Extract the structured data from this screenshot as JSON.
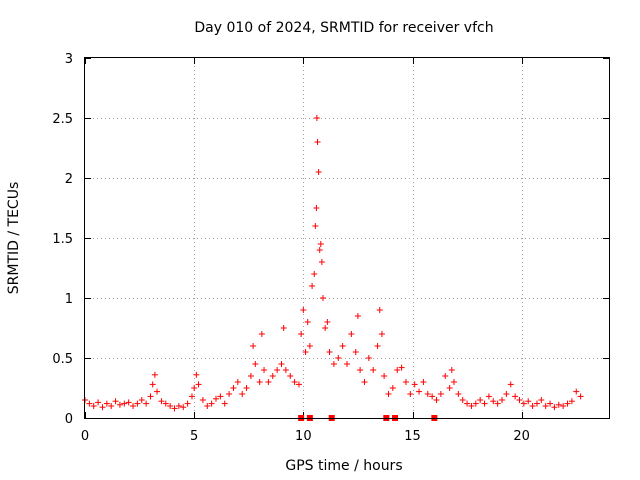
{
  "chart_data": {
    "type": "scatter",
    "title": "Day 010 of 2024, SRMTID for receiver vfch",
    "xlabel": "GPS time / hours",
    "ylabel": "SRMTID / TECUs",
    "xlim": [
      0,
      24
    ],
    "ylim": [
      0,
      3
    ],
    "x_ticks": [
      0,
      5,
      10,
      15,
      20
    ],
    "y_ticks": [
      0,
      0.5,
      1,
      1.5,
      2,
      2.5,
      3
    ],
    "x_tick_labels": [
      "0",
      "5",
      "10",
      "15",
      "20"
    ],
    "y_tick_labels": [
      "0",
      "0.5",
      "1",
      "1.5",
      "2",
      "2.5",
      "3"
    ],
    "grid": true,
    "marker": "plus",
    "marker_color": "#ff0000",
    "series": [
      {
        "name": "SRMTID",
        "points": [
          [
            0.0,
            0.15
          ],
          [
            0.2,
            0.12
          ],
          [
            0.4,
            0.1
          ],
          [
            0.6,
            0.13
          ],
          [
            0.8,
            0.09
          ],
          [
            1.0,
            0.12
          ],
          [
            1.2,
            0.1
          ],
          [
            1.4,
            0.14
          ],
          [
            1.6,
            0.11
          ],
          [
            1.8,
            0.12
          ],
          [
            2.0,
            0.13
          ],
          [
            2.2,
            0.1
          ],
          [
            2.4,
            0.12
          ],
          [
            2.6,
            0.15
          ],
          [
            2.8,
            0.12
          ],
          [
            3.0,
            0.18
          ],
          [
            3.1,
            0.28
          ],
          [
            3.2,
            0.36
          ],
          [
            3.3,
            0.22
          ],
          [
            3.5,
            0.14
          ],
          [
            3.7,
            0.12
          ],
          [
            3.9,
            0.1
          ],
          [
            4.1,
            0.08
          ],
          [
            4.3,
            0.1
          ],
          [
            4.5,
            0.09
          ],
          [
            4.7,
            0.12
          ],
          [
            4.9,
            0.18
          ],
          [
            5.0,
            0.25
          ],
          [
            5.1,
            0.36
          ],
          [
            5.2,
            0.28
          ],
          [
            5.4,
            0.15
          ],
          [
            5.6,
            0.1
          ],
          [
            5.8,
            0.12
          ],
          [
            6.0,
            0.16
          ],
          [
            6.2,
            0.18
          ],
          [
            6.4,
            0.12
          ],
          [
            6.6,
            0.2
          ],
          [
            6.8,
            0.25
          ],
          [
            7.0,
            0.3
          ],
          [
            7.2,
            0.2
          ],
          [
            7.4,
            0.25
          ],
          [
            7.6,
            0.35
          ],
          [
            7.7,
            0.6
          ],
          [
            7.8,
            0.45
          ],
          [
            8.0,
            0.3
          ],
          [
            8.1,
            0.7
          ],
          [
            8.2,
            0.4
          ],
          [
            8.4,
            0.3
          ],
          [
            8.6,
            0.35
          ],
          [
            8.8,
            0.4
          ],
          [
            9.0,
            0.45
          ],
          [
            9.1,
            0.75
          ],
          [
            9.2,
            0.4
          ],
          [
            9.4,
            0.35
          ],
          [
            9.6,
            0.3
          ],
          [
            9.8,
            0.28
          ],
          [
            9.9,
            0.7
          ],
          [
            10.0,
            0.9
          ],
          [
            10.1,
            0.55
          ],
          [
            10.2,
            0.8
          ],
          [
            10.3,
            0.6
          ],
          [
            10.4,
            1.1
          ],
          [
            10.5,
            1.2
          ],
          [
            10.55,
            1.6
          ],
          [
            10.6,
            1.75
          ],
          [
            10.62,
            2.5
          ],
          [
            10.65,
            2.3
          ],
          [
            10.7,
            2.05
          ],
          [
            10.75,
            1.4
          ],
          [
            10.8,
            1.45
          ],
          [
            10.85,
            1.3
          ],
          [
            10.9,
            1.0
          ],
          [
            11.0,
            0.75
          ],
          [
            11.1,
            0.8
          ],
          [
            11.2,
            0.55
          ],
          [
            11.4,
            0.45
          ],
          [
            11.6,
            0.5
          ],
          [
            11.8,
            0.6
          ],
          [
            12.0,
            0.45
          ],
          [
            12.2,
            0.7
          ],
          [
            12.4,
            0.55
          ],
          [
            12.5,
            0.85
          ],
          [
            12.6,
            0.4
          ],
          [
            12.8,
            0.3
          ],
          [
            13.0,
            0.5
          ],
          [
            13.2,
            0.4
          ],
          [
            13.4,
            0.6
          ],
          [
            13.5,
            0.9
          ],
          [
            13.6,
            0.7
          ],
          [
            13.7,
            0.35
          ],
          [
            13.9,
            0.2
          ],
          [
            14.1,
            0.25
          ],
          [
            14.3,
            0.4
          ],
          [
            14.5,
            0.42
          ],
          [
            14.7,
            0.3
          ],
          [
            14.9,
            0.2
          ],
          [
            15.1,
            0.28
          ],
          [
            15.3,
            0.22
          ],
          [
            15.5,
            0.3
          ],
          [
            15.7,
            0.2
          ],
          [
            15.9,
            0.18
          ],
          [
            16.1,
            0.15
          ],
          [
            16.3,
            0.2
          ],
          [
            16.5,
            0.35
          ],
          [
            16.7,
            0.25
          ],
          [
            16.8,
            0.4
          ],
          [
            16.9,
            0.3
          ],
          [
            17.1,
            0.2
          ],
          [
            17.3,
            0.15
          ],
          [
            17.5,
            0.12
          ],
          [
            17.7,
            0.1
          ],
          [
            17.9,
            0.12
          ],
          [
            18.1,
            0.15
          ],
          [
            18.3,
            0.12
          ],
          [
            18.5,
            0.18
          ],
          [
            18.7,
            0.14
          ],
          [
            18.9,
            0.12
          ],
          [
            19.1,
            0.15
          ],
          [
            19.3,
            0.2
          ],
          [
            19.5,
            0.28
          ],
          [
            19.7,
            0.18
          ],
          [
            19.9,
            0.15
          ],
          [
            20.1,
            0.12
          ],
          [
            20.3,
            0.14
          ],
          [
            20.5,
            0.1
          ],
          [
            20.7,
            0.12
          ],
          [
            20.9,
            0.15
          ],
          [
            21.1,
            0.1
          ],
          [
            21.3,
            0.12
          ],
          [
            21.5,
            0.09
          ],
          [
            21.7,
            0.11
          ],
          [
            21.9,
            0.1
          ],
          [
            22.1,
            0.12
          ],
          [
            22.3,
            0.14
          ],
          [
            22.5,
            0.22
          ],
          [
            22.7,
            0.18
          ]
        ]
      }
    ],
    "baseline_markers": [
      {
        "x": 9.9,
        "y": 0
      },
      {
        "x": 10.3,
        "y": 0
      },
      {
        "x": 11.3,
        "y": 0
      },
      {
        "x": 13.8,
        "y": 0
      },
      {
        "x": 14.2,
        "y": 0
      },
      {
        "x": 16.0,
        "y": 0
      }
    ]
  }
}
